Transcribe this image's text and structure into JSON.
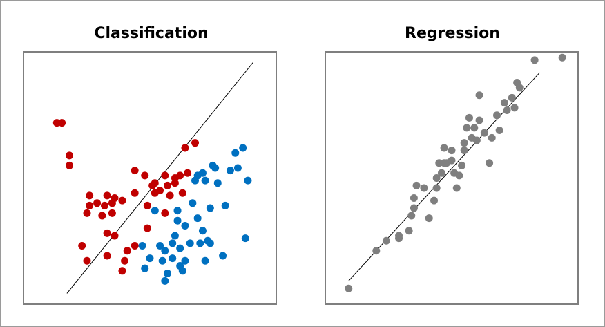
{
  "titles": {
    "classification": "Classification",
    "regression": "Regression"
  },
  "colors": {
    "class_a": "#c00000",
    "class_b": "#0070c0",
    "regression_points": "#7f7f7f",
    "line": "#000000",
    "panel_border": "#7f7f7f"
  },
  "chart_data": [
    {
      "type": "scatter",
      "title": "Classification",
      "series": [
        {
          "color": "#c00000",
          "points": [
            [
              0.15,
              0.72
            ],
            [
              0.18,
              0.59
            ],
            [
              0.23,
              0.23
            ],
            [
              0.25,
              0.17
            ],
            [
              0.26,
              0.43
            ],
            [
              0.26,
              0.39
            ],
            [
              0.29,
              0.4
            ],
            [
              0.32,
              0.39
            ],
            [
              0.33,
              0.43
            ],
            [
              0.33,
              0.28
            ],
            [
              0.33,
              0.19
            ],
            [
              0.35,
              0.4
            ],
            [
              0.36,
              0.42
            ],
            [
              0.35,
              0.36
            ],
            [
              0.36,
              0.27
            ],
            [
              0.39,
              0.13
            ],
            [
              0.4,
              0.17
            ],
            [
              0.41,
              0.21
            ],
            [
              0.44,
              0.23
            ],
            [
              0.44,
              0.44
            ],
            [
              0.44,
              0.53
            ],
            [
              0.48,
              0.51
            ],
            [
              0.49,
              0.3
            ],
            [
              0.49,
              0.39
            ],
            [
              0.51,
              0.47
            ],
            [
              0.52,
              0.48
            ],
            [
              0.52,
              0.44
            ],
            [
              0.54,
              0.45
            ],
            [
              0.56,
              0.36
            ],
            [
              0.56,
              0.51
            ],
            [
              0.57,
              0.47
            ],
            [
              0.58,
              0.43
            ],
            [
              0.6,
              0.48
            ],
            [
              0.6,
              0.5
            ],
            [
              0.62,
              0.51
            ],
            [
              0.63,
              0.44
            ],
            [
              0.65,
              0.52
            ],
            [
              0.64,
              0.62
            ],
            [
              0.68,
              0.64
            ],
            [
              0.13,
              0.72
            ],
            [
              0.18,
              0.55
            ],
            [
              0.25,
              0.36
            ],
            [
              0.31,
              0.35
            ],
            [
              0.39,
              0.41
            ]
          ]
        },
        {
          "color": "#0070c0",
          "points": [
            [
              0.47,
              0.23
            ],
            [
              0.48,
              0.14
            ],
            [
              0.5,
              0.18
            ],
            [
              0.54,
              0.23
            ],
            [
              0.55,
              0.17
            ],
            [
              0.56,
              0.09
            ],
            [
              0.57,
              0.12
            ],
            [
              0.56,
              0.21
            ],
            [
              0.59,
              0.18
            ],
            [
              0.59,
              0.24
            ],
            [
              0.6,
              0.27
            ],
            [
              0.61,
              0.37
            ],
            [
              0.61,
              0.33
            ],
            [
              0.62,
              0.22
            ],
            [
              0.62,
              0.15
            ],
            [
              0.63,
              0.13
            ],
            [
              0.64,
              0.17
            ],
            [
              0.64,
              0.31
            ],
            [
              0.66,
              0.24
            ],
            [
              0.67,
              0.4
            ],
            [
              0.68,
              0.49
            ],
            [
              0.69,
              0.34
            ],
            [
              0.69,
              0.51
            ],
            [
              0.7,
              0.24
            ],
            [
              0.71,
              0.29
            ],
            [
              0.71,
              0.52
            ],
            [
              0.72,
              0.49
            ],
            [
              0.72,
              0.17
            ],
            [
              0.73,
              0.25
            ],
            [
              0.74,
              0.24
            ],
            [
              0.74,
              0.38
            ],
            [
              0.75,
              0.55
            ],
            [
              0.76,
              0.54
            ],
            [
              0.77,
              0.48
            ],
            [
              0.79,
              0.19
            ],
            [
              0.8,
              0.39
            ],
            [
              0.82,
              0.53
            ],
            [
              0.84,
              0.6
            ],
            [
              0.85,
              0.54
            ],
            [
              0.87,
              0.62
            ],
            [
              0.88,
              0.26
            ],
            [
              0.89,
              0.49
            ],
            [
              0.52,
              0.37
            ]
          ]
        }
      ],
      "line": {
        "x": [
          0.17,
          0.91
        ],
        "y": [
          0.04,
          0.96
        ]
      }
    },
    {
      "type": "scatter",
      "title": "Regression",
      "series": [
        {
          "color": "#7f7f7f",
          "points": [
            [
              0.09,
              0.06
            ],
            [
              0.2,
              0.21
            ],
            [
              0.24,
              0.25
            ],
            [
              0.29,
              0.26
            ],
            [
              0.29,
              0.27
            ],
            [
              0.33,
              0.29
            ],
            [
              0.34,
              0.35
            ],
            [
              0.35,
              0.42
            ],
            [
              0.35,
              0.38
            ],
            [
              0.36,
              0.47
            ],
            [
              0.39,
              0.46
            ],
            [
              0.41,
              0.34
            ],
            [
              0.43,
              0.41
            ],
            [
              0.44,
              0.5
            ],
            [
              0.44,
              0.46
            ],
            [
              0.45,
              0.56
            ],
            [
              0.46,
              0.52
            ],
            [
              0.47,
              0.56
            ],
            [
              0.47,
              0.62
            ],
            [
              0.48,
              0.56
            ],
            [
              0.5,
              0.57
            ],
            [
              0.5,
              0.61
            ],
            [
              0.51,
              0.52
            ],
            [
              0.52,
              0.46
            ],
            [
              0.53,
              0.51
            ],
            [
              0.54,
              0.55
            ],
            [
              0.55,
              0.64
            ],
            [
              0.55,
              0.61
            ],
            [
              0.56,
              0.7
            ],
            [
              0.57,
              0.74
            ],
            [
              0.58,
              0.66
            ],
            [
              0.59,
              0.7
            ],
            [
              0.6,
              0.65
            ],
            [
              0.61,
              0.73
            ],
            [
              0.61,
              0.83
            ],
            [
              0.63,
              0.68
            ],
            [
              0.65,
              0.56
            ],
            [
              0.66,
              0.66
            ],
            [
              0.68,
              0.75
            ],
            [
              0.69,
              0.69
            ],
            [
              0.71,
              0.8
            ],
            [
              0.72,
              0.77
            ],
            [
              0.74,
              0.82
            ],
            [
              0.75,
              0.78
            ],
            [
              0.76,
              0.88
            ],
            [
              0.77,
              0.86
            ],
            [
              0.83,
              0.97
            ],
            [
              0.94,
              0.98
            ]
          ]
        }
      ],
      "line": {
        "x": [
          0.09,
          0.85
        ],
        "y": [
          0.09,
          0.92
        ]
      }
    }
  ]
}
